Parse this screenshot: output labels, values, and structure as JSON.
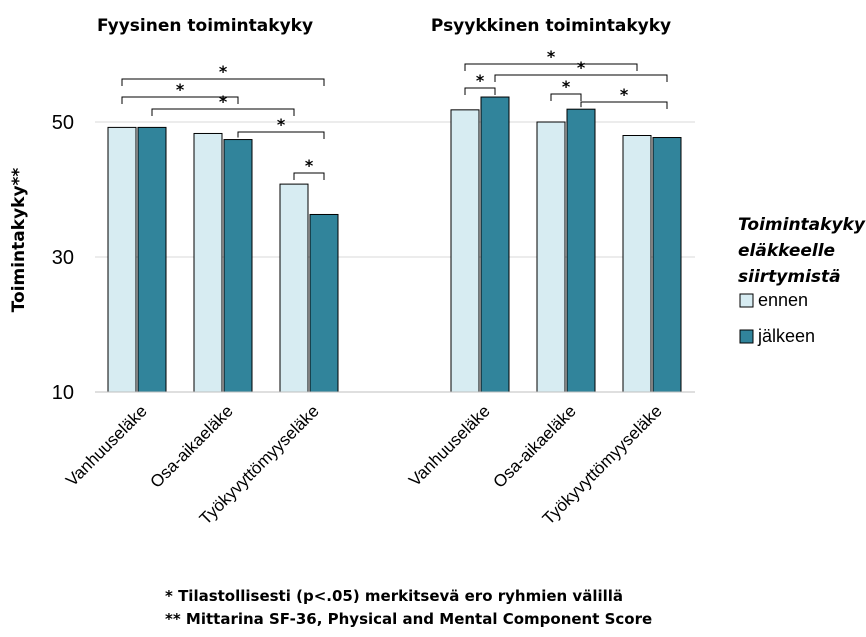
{
  "chart_data": {
    "type": "bar",
    "ylabel": "Toimintakyky**",
    "ylim": [
      10,
      55
    ],
    "yticks": [
      10,
      30,
      50
    ],
    "grid": true,
    "legend_placement": "right",
    "legend": {
      "title_lines": [
        "Toimintakyky",
        "eläkkeelle",
        "siirtymistä"
      ],
      "entries": [
        {
          "name": "ennen",
          "color": "#d7ecf2"
        },
        {
          "name": "jälkeen",
          "color": "#31849b"
        }
      ]
    },
    "panels": [
      {
        "title": "Fyysinen toimintakyky",
        "categories": [
          "Vanhuuseläke",
          "Osa-aikaeläke",
          "Työkyvyttömyyseläke"
        ],
        "series": [
          {
            "name": "ennen",
            "values": [
              49.2,
              48.3,
              40.8
            ]
          },
          {
            "name": "jälkeen",
            "values": [
              49.2,
              47.4,
              36.3
            ]
          }
        ],
        "significance": [
          {
            "from": [
              0,
              0
            ],
            "to": [
              2,
              1
            ],
            "label": "*"
          },
          {
            "from": [
              0,
              0
            ],
            "to": [
              1,
              1
            ],
            "label": "*"
          },
          {
            "from": [
              0,
              1
            ],
            "to": [
              2,
              0
            ],
            "label": "*"
          },
          {
            "from": [
              1,
              1
            ],
            "to": [
              2,
              1
            ],
            "label": "*"
          },
          {
            "from": [
              2,
              0
            ],
            "to": [
              2,
              1
            ],
            "label": "*"
          }
        ]
      },
      {
        "title": "Psyykkinen toimintakyky",
        "categories": [
          "Vanhuuseläke",
          "Osa-aikaeläke",
          "Työkyvyttömyyseläke"
        ],
        "series": [
          {
            "name": "ennen",
            "values": [
              51.8,
              50.0,
              48.0
            ]
          },
          {
            "name": "jälkeen",
            "values": [
              53.7,
              51.9,
              47.7
            ]
          }
        ],
        "significance": [
          {
            "from": [
              0,
              0
            ],
            "to": [
              2,
              0
            ],
            "label": "*"
          },
          {
            "from": [
              0,
              0
            ],
            "to": [
              0,
              1
            ],
            "label": "*"
          },
          {
            "from": [
              0,
              1
            ],
            "to": [
              2,
              1
            ],
            "label": "*"
          },
          {
            "from": [
              1,
              0
            ],
            "to": [
              1,
              1
            ],
            "label": "*"
          },
          {
            "from": [
              1,
              1
            ],
            "to": [
              2,
              1
            ],
            "label": "*"
          }
        ]
      }
    ]
  },
  "footnotes": [
    "* Tilastollisesti (p<.05) merkitsevä ero ryhmien välillä",
    "** Mittarina SF-36, Physical and Mental Component Score"
  ]
}
